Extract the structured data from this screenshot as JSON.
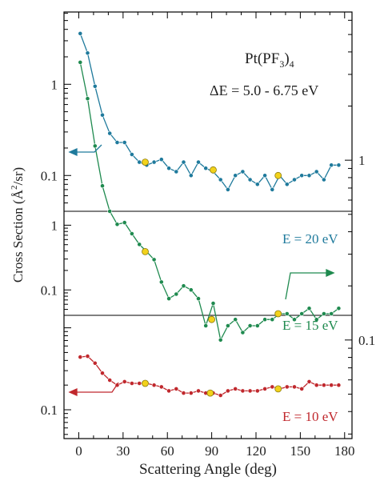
{
  "chart_data": {
    "type": "line",
    "title": "",
    "xlabel": "Scattering Angle (deg)",
    "ylabel_prefix": "Cross Section (",
    "ylabel_unit": "Å",
    "ylabel_exp": "2",
    "ylabel_suffix": "/sr)",
    "xlim": [
      -10,
      185
    ],
    "x_ticks": [
      0,
      30,
      60,
      90,
      120,
      150,
      180
    ],
    "x_tick_labels": [
      "0",
      "30",
      "60",
      "90",
      "120",
      "150",
      "180"
    ],
    "y_scale": "log",
    "left_axis": {
      "panels": [
        {
          "ylim": [
            0.0405,
            6.2
          ],
          "ticks": [
            0.1,
            1
          ],
          "tick_labels": [
            "0.1",
            "1"
          ]
        },
        {
          "ylim": [
            0.0405,
            1.64
          ],
          "ticks": [
            0.1,
            1
          ],
          "tick_labels": [
            "0.1",
            "1"
          ]
        },
        {
          "ylim": [
            0.0445,
            1.42
          ],
          "ticks": [
            0.1
          ],
          "tick_labels": [
            "0.1"
          ]
        }
      ]
    },
    "right_axis": {
      "ylim": [
        0.0283,
        6.67
      ],
      "ticks": [
        0.1,
        1
      ],
      "tick_labels": [
        "0.1",
        "1"
      ]
    },
    "annotations": {
      "molecule_prefix": "Pt(PF",
      "molecule_sub1": "3",
      "molecule_mid": ")",
      "molecule_sub2": "4",
      "energy_range": "ΔE = 5.0 - 6.75 eV"
    },
    "series": [
      {
        "name": "E = 20 eV",
        "color": "#1f7a9c",
        "panel": 0,
        "axis": "left",
        "x": [
          1,
          6,
          11,
          16,
          21,
          26,
          31,
          36,
          41,
          46,
          51,
          56,
          61,
          66,
          71,
          76,
          81,
          86,
          91,
          96,
          101,
          106,
          111,
          116,
          121,
          126,
          131,
          136,
          141,
          146,
          151,
          156,
          161,
          166,
          171,
          176
        ],
        "y": [
          3.6,
          2.2,
          0.95,
          0.46,
          0.29,
          0.23,
          0.23,
          0.17,
          0.14,
          0.13,
          0.14,
          0.15,
          0.12,
          0.11,
          0.14,
          0.1,
          0.14,
          0.12,
          0.11,
          0.09,
          0.07,
          0.1,
          0.11,
          0.09,
          0.08,
          0.1,
          0.07,
          0.1,
          0.08,
          0.09,
          0.1,
          0.1,
          0.11,
          0.09,
          0.13,
          0.13
        ],
        "highlight_x": [
          45,
          91,
          135
        ],
        "highlight_y": [
          0.14,
          0.115,
          0.1
        ]
      },
      {
        "name": "E = 15 eV",
        "color": "#1f8a4f",
        "panel": 1,
        "axis": "right",
        "x": [
          1,
          6,
          11,
          16,
          21,
          26,
          31,
          36,
          41,
          46,
          51,
          56,
          61,
          66,
          71,
          76,
          81,
          86,
          91,
          96,
          101,
          106,
          111,
          116,
          121,
          126,
          131,
          136,
          141,
          146,
          151,
          156,
          161,
          166,
          171,
          176
        ],
        "y": [
          3.5,
          2.2,
          1.2,
          0.72,
          0.52,
          0.44,
          0.45,
          0.39,
          0.34,
          0.31,
          0.28,
          0.21,
          0.17,
          0.18,
          0.2,
          0.19,
          0.17,
          0.12,
          0.16,
          0.1,
          0.12,
          0.13,
          0.11,
          0.12,
          0.12,
          0.13,
          0.13,
          0.14,
          0.14,
          0.13,
          0.14,
          0.15,
          0.13,
          0.14,
          0.14,
          0.15
        ],
        "highlight_x": [
          45,
          90,
          135
        ],
        "highlight_y": [
          0.31,
          0.13,
          0.14
        ]
      },
      {
        "name": "E = 10 eV",
        "color": "#c0282d",
        "panel": 2,
        "axis": "left",
        "x": [
          1,
          6,
          11,
          16,
          21,
          26,
          31,
          36,
          41,
          46,
          51,
          56,
          61,
          66,
          71,
          76,
          81,
          86,
          91,
          96,
          101,
          106,
          111,
          116,
          121,
          126,
          131,
          136,
          141,
          146,
          151,
          156,
          161,
          166,
          171,
          176
        ],
        "y": [
          0.44,
          0.45,
          0.37,
          0.28,
          0.23,
          0.2,
          0.22,
          0.21,
          0.21,
          0.21,
          0.2,
          0.19,
          0.17,
          0.18,
          0.16,
          0.16,
          0.17,
          0.16,
          0.16,
          0.15,
          0.17,
          0.18,
          0.17,
          0.17,
          0.17,
          0.18,
          0.19,
          0.18,
          0.19,
          0.19,
          0.18,
          0.22,
          0.2,
          0.2,
          0.2,
          0.2
        ],
        "highlight_x": [
          45,
          89,
          135
        ],
        "highlight_y": [
          0.21,
          0.16,
          0.18
        ]
      }
    ]
  }
}
